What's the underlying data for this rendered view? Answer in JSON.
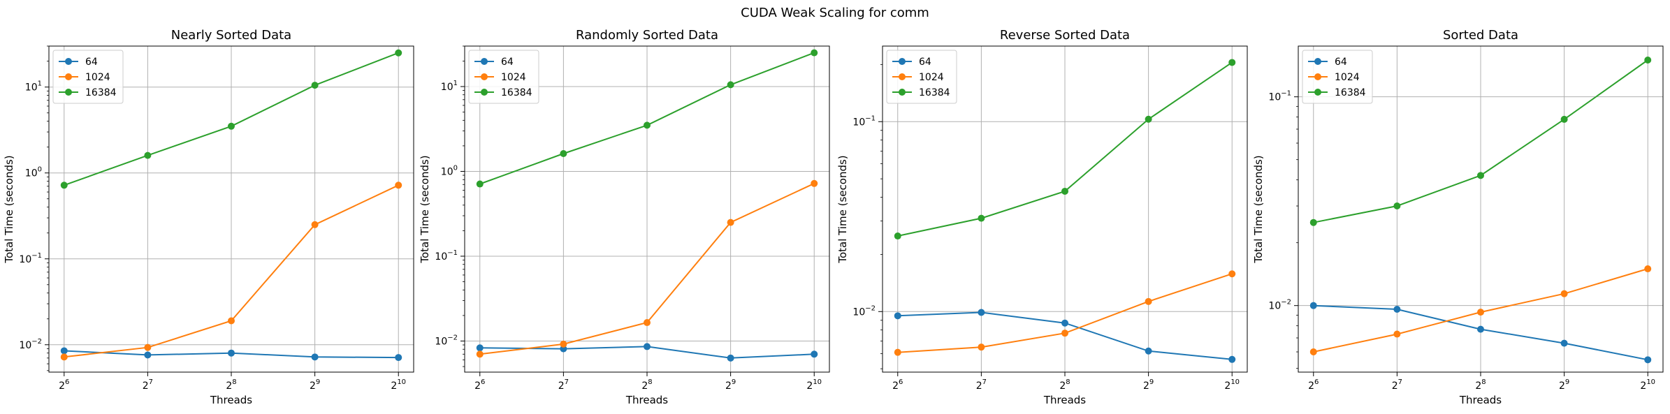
{
  "figure": {
    "suptitle": "CUDA Weak Scaling for comm"
  },
  "colors": {
    "64": "#1f77b4",
    "1024": "#ff7f0e",
    "16384": "#2ca02c",
    "grid": "#b0b0b0"
  },
  "chart_data": [
    {
      "type": "line",
      "title": "Nearly Sorted Data",
      "xlabel": "Threads",
      "ylabel": "Total Time (seconds)",
      "x_scale": "log2",
      "y_scale": "log10",
      "x": [
        64,
        128,
        256,
        512,
        1024
      ],
      "xticks": [
        {
          "base": "2",
          "exp": "6"
        },
        {
          "base": "2",
          "exp": "7"
        },
        {
          "base": "2",
          "exp": "8"
        },
        {
          "base": "2",
          "exp": "9"
        },
        {
          "base": "2",
          "exp": "10"
        }
      ],
      "ylim": [
        0.0048,
        30
      ],
      "yticks": [
        {
          "value": 0.01,
          "base": "10",
          "exp": "−2"
        },
        {
          "value": 0.1,
          "base": "10",
          "exp": "−1"
        },
        {
          "value": 1,
          "base": "10",
          "exp": "0"
        },
        {
          "value": 10,
          "base": "10",
          "exp": "1"
        }
      ],
      "grid": true,
      "legend": "top-left",
      "series": [
        {
          "name": "64",
          "values": [
            0.0085,
            0.0076,
            0.008,
            0.0072,
            0.0071
          ]
        },
        {
          "name": "1024",
          "values": [
            0.0072,
            0.0093,
            0.019,
            0.25,
            0.72
          ]
        },
        {
          "name": "16384",
          "values": [
            0.72,
            1.6,
            3.5,
            10.5,
            25
          ]
        }
      ]
    },
    {
      "type": "line",
      "title": "Randomly Sorted Data",
      "xlabel": "Threads",
      "ylabel": "Total Time (seconds)",
      "x_scale": "log2",
      "y_scale": "log10",
      "x": [
        64,
        128,
        256,
        512,
        1024
      ],
      "xticks": [
        {
          "base": "2",
          "exp": "6"
        },
        {
          "base": "2",
          "exp": "7"
        },
        {
          "base": "2",
          "exp": "8"
        },
        {
          "base": "2",
          "exp": "9"
        },
        {
          "base": "2",
          "exp": "10"
        }
      ],
      "ylim": [
        0.0043,
        30
      ],
      "yticks": [
        {
          "value": 0.01,
          "base": "10",
          "exp": "−2"
        },
        {
          "value": 0.1,
          "base": "10",
          "exp": "−1"
        },
        {
          "value": 1,
          "base": "10",
          "exp": "0"
        },
        {
          "value": 10,
          "base": "10",
          "exp": "1"
        }
      ],
      "grid": true,
      "legend": "top-left",
      "series": [
        {
          "name": "64",
          "values": [
            0.0083,
            0.0081,
            0.0086,
            0.0063,
            0.007
          ]
        },
        {
          "name": "1024",
          "values": [
            0.007,
            0.0092,
            0.0165,
            0.25,
            0.72
          ]
        },
        {
          "name": "16384",
          "values": [
            0.71,
            1.62,
            3.5,
            10.5,
            25
          ]
        }
      ]
    },
    {
      "type": "line",
      "title": "Reverse Sorted Data",
      "xlabel": "Threads",
      "ylabel": "Total Time (seconds)",
      "x_scale": "log2",
      "y_scale": "log10",
      "x": [
        64,
        128,
        256,
        512,
        1024
      ],
      "xticks": [
        {
          "base": "2",
          "exp": "6"
        },
        {
          "base": "2",
          "exp": "7"
        },
        {
          "base": "2",
          "exp": "8"
        },
        {
          "base": "2",
          "exp": "9"
        },
        {
          "base": "2",
          "exp": "10"
        }
      ],
      "ylim": [
        0.0048,
        0.25
      ],
      "yticks": [
        {
          "value": 0.01,
          "base": "10",
          "exp": "−2"
        },
        {
          "value": 0.1,
          "base": "10",
          "exp": "−1"
        }
      ],
      "grid": true,
      "legend": "top-left",
      "series": [
        {
          "name": "64",
          "values": [
            0.0095,
            0.0099,
            0.0087,
            0.0062,
            0.0056
          ]
        },
        {
          "name": "1024",
          "values": [
            0.0061,
            0.0065,
            0.0077,
            0.0113,
            0.0158
          ]
        },
        {
          "name": "16384",
          "values": [
            0.025,
            0.031,
            0.043,
            0.103,
            0.205
          ]
        }
      ]
    },
    {
      "type": "line",
      "title": "Sorted Data",
      "xlabel": "Threads",
      "ylabel": "Total Time (seconds)",
      "x_scale": "log2",
      "y_scale": "log10",
      "x": [
        64,
        128,
        256,
        512,
        1024
      ],
      "xticks": [
        {
          "base": "2",
          "exp": "6"
        },
        {
          "base": "2",
          "exp": "7"
        },
        {
          "base": "2",
          "exp": "8"
        },
        {
          "base": "2",
          "exp": "9"
        },
        {
          "base": "2",
          "exp": "10"
        }
      ],
      "ylim": [
        0.0048,
        0.175
      ],
      "yticks": [
        {
          "value": 0.01,
          "base": "10",
          "exp": "−2"
        },
        {
          "value": 0.1,
          "base": "10",
          "exp": "−1"
        }
      ],
      "grid": true,
      "legend": "top-left",
      "series": [
        {
          "name": "64",
          "values": [
            0.01,
            0.0096,
            0.0077,
            0.0066,
            0.0055
          ]
        },
        {
          "name": "1024",
          "values": [
            0.006,
            0.0073,
            0.0093,
            0.0114,
            0.015
          ]
        },
        {
          "name": "16384",
          "values": [
            0.025,
            0.03,
            0.042,
            0.078,
            0.15
          ]
        }
      ]
    }
  ]
}
